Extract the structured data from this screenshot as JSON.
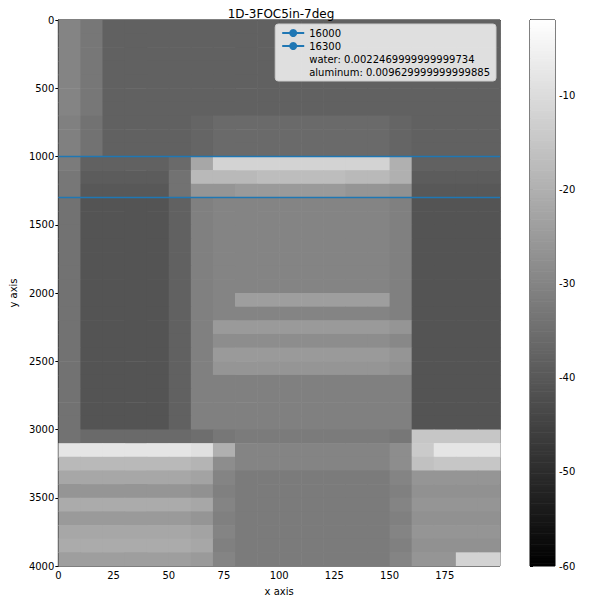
{
  "chart_data": {
    "type": "heatmap",
    "title": "1D-3FOC5in-7deg",
    "x_label": "x axis",
    "y_label": "y axis",
    "xlim": [
      0,
      200
    ],
    "xticks": [
      0,
      25,
      50,
      75,
      100,
      125,
      150,
      175
    ],
    "ylim": [
      4000,
      0
    ],
    "yticks": [
      0,
      500,
      1000,
      1500,
      2000,
      2500,
      3000,
      3500,
      4000
    ],
    "legend": "upper right",
    "series": [
      {
        "name": "16000",
        "type": "line",
        "color": "#1f77b4",
        "x": [
          0,
          200
        ],
        "values": [
          1000,
          1000
        ]
      },
      {
        "name": "16300",
        "type": "line",
        "color": "#1f77b4",
        "x": [
          0,
          200
        ],
        "values": [
          1300,
          1300
        ]
      }
    ],
    "annotations": [
      "water: 0.0022469999999999734",
      "aluminum: 0.009629999999999885"
    ],
    "colorbar": {
      "range": [
        -60,
        -2
      ],
      "ticks": [
        -60,
        -50,
        -40,
        -30,
        -20,
        -10
      ]
    },
    "cells": {
      "x_edges": [
        0,
        10,
        20,
        30,
        40,
        50,
        60,
        70,
        80,
        90,
        100,
        110,
        120,
        130,
        140,
        150,
        160,
        170,
        180,
        190,
        200
      ],
      "y_edges": [
        0,
        100,
        200,
        300,
        400,
        500,
        600,
        700,
        800,
        900,
        1000,
        1100,
        1200,
        1300,
        1400,
        1500,
        1600,
        1700,
        1800,
        1900,
        2000,
        2100,
        2200,
        2300,
        2400,
        2500,
        2600,
        2700,
        2800,
        2900,
        3000,
        3100,
        3200,
        3300,
        3400,
        3500,
        3600,
        3700,
        3800,
        3900,
        4000
      ],
      "values": [
        [
          -30,
          -33,
          -38,
          -38,
          -38,
          -38,
          -38,
          -38,
          -38,
          -38,
          -38,
          -38,
          -38,
          -38,
          -38,
          -38,
          -38,
          -38,
          -38,
          -38
        ],
        [
          -30,
          -33,
          -38,
          -38,
          -38,
          -38,
          -38,
          -38,
          -38,
          -38,
          -38,
          -38,
          -38,
          -38,
          -38,
          -38,
          -38,
          -38,
          -38,
          -38
        ],
        [
          -30,
          -33,
          -38,
          -38,
          -38,
          -38,
          -38,
          -38,
          -38,
          -38,
          -38,
          -38,
          -38,
          -38,
          -38,
          -38,
          -38,
          -38,
          -38,
          -38
        ],
        [
          -30,
          -33,
          -38,
          -38,
          -38,
          -38,
          -38,
          -38,
          -38,
          -38,
          -38,
          -38,
          -38,
          -38,
          -38,
          -38,
          -38,
          -38,
          -38,
          -38
        ],
        [
          -30,
          -33,
          -38,
          -38,
          -38,
          -38,
          -38,
          -38,
          -38,
          -38,
          -38,
          -38,
          -38,
          -38,
          -38,
          -38,
          -38,
          -38,
          -38,
          -38
        ],
        [
          -30,
          -33,
          -38,
          -38,
          -38,
          -38,
          -38,
          -38,
          -38,
          -38,
          -38,
          -38,
          -38,
          -38,
          -38,
          -38,
          -38,
          -38,
          -38,
          -38
        ],
        [
          -30,
          -33,
          -38,
          -38,
          -38,
          -38,
          -38,
          -38,
          -38,
          -38,
          -38,
          -38,
          -38,
          -38,
          -38,
          -38,
          -38,
          -38,
          -38,
          -38
        ],
        [
          -31,
          -34,
          -38,
          -38,
          -38,
          -38,
          -37,
          -36,
          -36,
          -36,
          -36,
          -36,
          -36,
          -36,
          -36,
          -37,
          -38,
          -38,
          -38,
          -38
        ],
        [
          -31,
          -34,
          -38,
          -38,
          -38,
          -38,
          -37,
          -36,
          -36,
          -36,
          -36,
          -36,
          -36,
          -36,
          -36,
          -37,
          -38,
          -38,
          -38,
          -38
        ],
        [
          -31,
          -34,
          -38,
          -38,
          -38,
          -38,
          -37,
          -36,
          -36,
          -36,
          -36,
          -36,
          -36,
          -36,
          -36,
          -37,
          -38,
          -38,
          -38,
          -38
        ],
        [
          -32,
          -38,
          -38,
          -38,
          -38,
          -36,
          -22,
          -12,
          -12,
          -12,
          -12,
          -12,
          -12,
          -12,
          -12,
          -20,
          -38,
          -38,
          -38,
          -38
        ],
        [
          -33,
          -39,
          -39,
          -39,
          -39,
          -34,
          -18,
          -18,
          -18,
          -17,
          -17,
          -17,
          -17,
          -18,
          -18,
          -20,
          -39,
          -39,
          -39,
          -39
        ],
        [
          -33,
          -40,
          -40,
          -40,
          -40,
          -34,
          -26,
          -26,
          -25,
          -25,
          -25,
          -25,
          -25,
          -26,
          -26,
          -27,
          -40,
          -40,
          -40,
          -40
        ],
        [
          -34,
          -41,
          -41,
          -41,
          -41,
          -38,
          -31,
          -30,
          -30,
          -30,
          -30,
          -30,
          -30,
          -30,
          -30,
          -31,
          -41,
          -41,
          -41,
          -41
        ],
        [
          -34,
          -41,
          -41,
          -41,
          -41,
          -38,
          -31,
          -30,
          -30,
          -30,
          -30,
          -30,
          -30,
          -30,
          -30,
          -31,
          -41,
          -41,
          -41,
          -41
        ],
        [
          -34,
          -41,
          -41,
          -41,
          -41,
          -38,
          -31,
          -30,
          -30,
          -30,
          -30,
          -30,
          -30,
          -30,
          -30,
          -31,
          -41,
          -41,
          -41,
          -41
        ],
        [
          -34,
          -41,
          -41,
          -41,
          -41,
          -38,
          -31,
          -30,
          -30,
          -30,
          -30,
          -30,
          -30,
          -30,
          -30,
          -31,
          -41,
          -41,
          -41,
          -41
        ],
        [
          -34,
          -41,
          -41,
          -41,
          -41,
          -38,
          -31,
          -30,
          -30,
          -30,
          -30,
          -30,
          -30,
          -30,
          -30,
          -31,
          -41,
          -41,
          -41,
          -41
        ],
        [
          -34,
          -41,
          -41,
          -41,
          -41,
          -38,
          -31,
          -30,
          -30,
          -30,
          -30,
          -30,
          -30,
          -30,
          -30,
          -31,
          -41,
          -41,
          -41,
          -41
        ],
        [
          -34,
          -41,
          -41,
          -41,
          -41,
          -38,
          -31,
          -30,
          -30,
          -30,
          -30,
          -30,
          -30,
          -30,
          -30,
          -31,
          -41,
          -41,
          -41,
          -41
        ],
        [
          -34,
          -41,
          -41,
          -41,
          -41,
          -38,
          -31,
          -30,
          -24,
          -24,
          -24,
          -24,
          -24,
          -24,
          -24,
          -31,
          -41,
          -41,
          -41,
          -41
        ],
        [
          -34,
          -41,
          -41,
          -41,
          -41,
          -38,
          -31,
          -30,
          -30,
          -30,
          -30,
          -30,
          -30,
          -30,
          -30,
          -31,
          -41,
          -41,
          -41,
          -41
        ],
        [
          -34,
          -41,
          -41,
          -41,
          -41,
          -38,
          -31,
          -25,
          -25,
          -25,
          -25,
          -25,
          -25,
          -25,
          -25,
          -26,
          -41,
          -41,
          -41,
          -41
        ],
        [
          -34,
          -41,
          -41,
          -41,
          -41,
          -38,
          -31,
          -28,
          -28,
          -28,
          -28,
          -28,
          -28,
          -28,
          -28,
          -29,
          -41,
          -41,
          -41,
          -41
        ],
        [
          -34,
          -41,
          -41,
          -41,
          -41,
          -38,
          -31,
          -25,
          -25,
          -25,
          -25,
          -25,
          -25,
          -25,
          -25,
          -26,
          -41,
          -41,
          -41,
          -41
        ],
        [
          -34,
          -41,
          -41,
          -41,
          -41,
          -38,
          -31,
          -26,
          -26,
          -26,
          -26,
          -26,
          -26,
          -26,
          -26,
          -27,
          -41,
          -41,
          -41,
          -41
        ],
        [
          -34,
          -41,
          -41,
          -41,
          -41,
          -38,
          -31,
          -31,
          -31,
          -31,
          -31,
          -31,
          -31,
          -31,
          -31,
          -31,
          -41,
          -41,
          -41,
          -41
        ],
        [
          -34,
          -41,
          -41,
          -41,
          -41,
          -38,
          -31,
          -31,
          -31,
          -31,
          -31,
          -31,
          -31,
          -31,
          -31,
          -31,
          -41,
          -41,
          -41,
          -41
        ],
        [
          -34,
          -41,
          -41,
          -41,
          -41,
          -38,
          -31,
          -31,
          -31,
          -31,
          -31,
          -31,
          -31,
          -31,
          -31,
          -31,
          -41,
          -41,
          -41,
          -41
        ],
        [
          -34,
          -41,
          -41,
          -41,
          -41,
          -38,
          -31,
          -31,
          -31,
          -31,
          -31,
          -31,
          -31,
          -31,
          -31,
          -31,
          -41,
          -41,
          -41,
          -41
        ],
        [
          -34,
          -36,
          -36,
          -36,
          -36,
          -36,
          -35,
          -33,
          -32,
          -32,
          -32,
          -32,
          -32,
          -32,
          -32,
          -33,
          -15,
          -15,
          -15,
          -15
        ],
        [
          -8,
          -8,
          -8,
          -8,
          -8,
          -8,
          -9,
          -20,
          -30,
          -30,
          -30,
          -30,
          -30,
          -30,
          -30,
          -28,
          -14,
          -8,
          -8,
          -8
        ],
        [
          -18,
          -18,
          -18,
          -18,
          -18,
          -18,
          -19,
          -28,
          -30,
          -30,
          -30,
          -30,
          -30,
          -30,
          -30,
          -28,
          -16,
          -15,
          -15,
          -15
        ],
        [
          -22,
          -22,
          -22,
          -22,
          -22,
          -22,
          -23,
          -30,
          -32,
          -32,
          -32,
          -32,
          -32,
          -32,
          -32,
          -30,
          -26,
          -26,
          -26,
          -26
        ],
        [
          -26,
          -26,
          -26,
          -26,
          -26,
          -26,
          -27,
          -31,
          -32,
          -32,
          -32,
          -32,
          -32,
          -32,
          -32,
          -31,
          -27,
          -27,
          -27,
          -27
        ],
        [
          -21,
          -21,
          -21,
          -21,
          -21,
          -21,
          -22,
          -30,
          -32,
          -32,
          -32,
          -32,
          -32,
          -32,
          -32,
          -30,
          -26,
          -26,
          -26,
          -26
        ],
        [
          -25,
          -25,
          -25,
          -25,
          -25,
          -25,
          -26,
          -31,
          -32,
          -32,
          -32,
          -32,
          -32,
          -32,
          -32,
          -31,
          -27,
          -27,
          -27,
          -27
        ],
        [
          -22,
          -22,
          -22,
          -22,
          -22,
          -22,
          -23,
          -30,
          -32,
          -32,
          -32,
          -32,
          -32,
          -32,
          -32,
          -30,
          -26,
          -26,
          -26,
          -26
        ],
        [
          -21,
          -21,
          -21,
          -21,
          -21,
          -21,
          -22,
          -31,
          -32,
          -32,
          -32,
          -32,
          -32,
          -32,
          -32,
          -31,
          -27,
          -27,
          -27,
          -27
        ],
        [
          -24,
          -24,
          -24,
          -24,
          -24,
          -24,
          -25,
          -30,
          -32,
          -32,
          -32,
          -32,
          -32,
          -32,
          -32,
          -30,
          -26,
          -26,
          -12,
          -12
        ]
      ]
    }
  }
}
